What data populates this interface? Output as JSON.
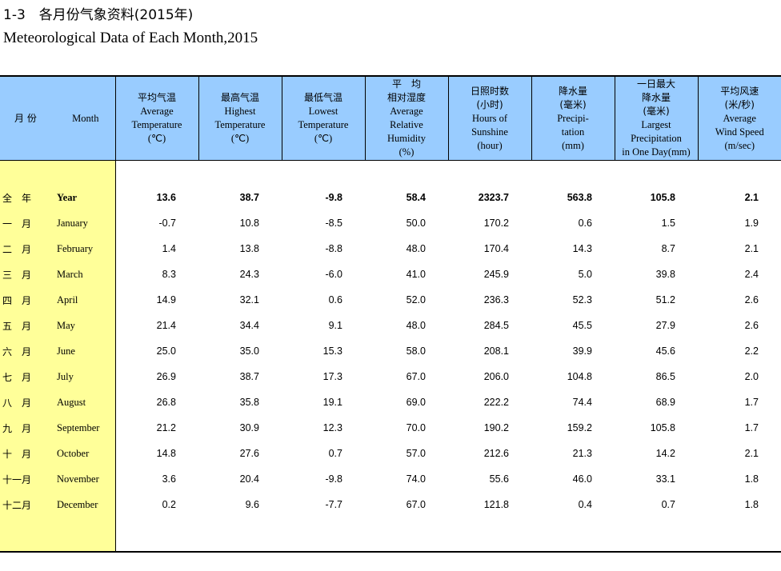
{
  "title": {
    "cn": "1-3　各月份气象资料(2015年)",
    "en": "Meteorological Data of Each Month,2015"
  },
  "columns": [
    {
      "lines_cn": [
        "月 份"
      ],
      "lines_en": [
        "Month"
      ]
    },
    {
      "lines_cn": [
        "平均气温"
      ],
      "lines_en": [
        "Average",
        "Temperature",
        "(℃)"
      ]
    },
    {
      "lines_cn": [
        "最高气温"
      ],
      "lines_en": [
        "Highest",
        "Temperature",
        "(℃)"
      ]
    },
    {
      "lines_cn": [
        "最低气温"
      ],
      "lines_en": [
        "Lowest",
        "Temperature",
        "(℃)"
      ]
    },
    {
      "lines_cn": [
        "平　均",
        "相对湿度"
      ],
      "lines_en": [
        "Average",
        "Relative",
        "Humidity",
        "(%)"
      ]
    },
    {
      "lines_cn": [
        "日照时数",
        "(小时)"
      ],
      "lines_en": [
        "Hours of",
        "Sunshine",
        "(hour)"
      ]
    },
    {
      "lines_cn": [
        "降水量",
        "(毫米)"
      ],
      "lines_en": [
        "Precipi-",
        "tation",
        "(mm)"
      ]
    },
    {
      "lines_cn": [
        "一日最大",
        "降水量",
        "(毫米)"
      ],
      "lines_en": [
        "Largest",
        "Precipitation",
        "in One Day(mm)"
      ]
    },
    {
      "lines_cn": [
        "平均风速",
        "(米/秒)"
      ],
      "lines_en": [
        "Average",
        "Wind Speed",
        "(m/sec)"
      ]
    }
  ],
  "rows": [
    {
      "cn": "全　年",
      "en": "Year",
      "values": [
        "13.6",
        "38.7",
        "-9.8",
        "58.4",
        "2323.7",
        "563.8",
        "105.8",
        "2.1"
      ],
      "bold": true
    },
    {
      "cn": "一　月",
      "en": "January",
      "values": [
        "-0.7",
        "10.8",
        "-8.5",
        "50.0",
        "170.2",
        "0.6",
        "1.5",
        "1.9"
      ]
    },
    {
      "cn": "二　月",
      "en": "February",
      "values": [
        "1.4",
        "13.8",
        "-8.8",
        "48.0",
        "170.4",
        "14.3",
        "8.7",
        "2.1"
      ]
    },
    {
      "cn": "三　月",
      "en": "March",
      "values": [
        "8.3",
        "24.3",
        "-6.0",
        "41.0",
        "245.9",
        "5.0",
        "39.8",
        "2.4"
      ]
    },
    {
      "cn": "四　月",
      "en": "April",
      "values": [
        "14.9",
        "32.1",
        "0.6",
        "52.0",
        "236.3",
        "52.3",
        "51.2",
        "2.6"
      ]
    },
    {
      "cn": "五　月",
      "en": "May",
      "values": [
        "21.4",
        "34.4",
        "9.1",
        "48.0",
        "284.5",
        "45.5",
        "27.9",
        "2.6"
      ]
    },
    {
      "cn": "六　月",
      "en": "June",
      "values": [
        "25.0",
        "35.0",
        "15.3",
        "58.0",
        "208.1",
        "39.9",
        "45.6",
        "2.2"
      ]
    },
    {
      "cn": "七　月",
      "en": "July",
      "values": [
        "26.9",
        "38.7",
        "17.3",
        "67.0",
        "206.0",
        "104.8",
        "86.5",
        "2.0"
      ]
    },
    {
      "cn": "八　月",
      "en": "August",
      "values": [
        "26.8",
        "35.8",
        "19.1",
        "69.0",
        "222.2",
        "74.4",
        "68.9",
        "1.7"
      ]
    },
    {
      "cn": "九　月",
      "en": "September",
      "values": [
        "21.2",
        "30.9",
        "12.3",
        "70.0",
        "190.2",
        "159.2",
        "105.8",
        "1.7"
      ]
    },
    {
      "cn": "十　月",
      "en": "October",
      "values": [
        "14.8",
        "27.6",
        "0.7",
        "57.0",
        "212.6",
        "21.3",
        "14.2",
        "2.1"
      ]
    },
    {
      "cn": "十一月",
      "en": "November",
      "values": [
        "3.6",
        "20.4",
        "-9.8",
        "74.0",
        "55.6",
        "46.0",
        "33.1",
        "1.8"
      ]
    },
    {
      "cn": "十二月",
      "en": "December",
      "values": [
        "0.2",
        "9.6",
        "-7.7",
        "67.0",
        "121.8",
        "0.4",
        "0.7",
        "1.8"
      ]
    }
  ],
  "colors": {
    "header_bg": "#99ccff",
    "label_col_bg": "#ffff99",
    "text": "#000000"
  }
}
